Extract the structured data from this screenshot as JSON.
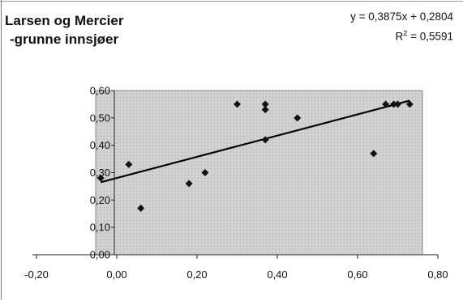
{
  "chart_data": {
    "type": "scatter",
    "title": "Larsen og Mercier",
    "subtitle": "-grunne innsjøer",
    "trendline": {
      "equation": "y = 0,3875x + 0,2804",
      "r_squared_label": "R",
      "r_squared_sup": "2",
      "r_squared_value": " = 0,5591",
      "slope": 0.3875,
      "intercept": 0.2804,
      "x_range": [
        -0.04,
        0.73
      ]
    },
    "xlim": [
      -0.2,
      0.8
    ],
    "ylim": [
      0.0,
      0.6
    ],
    "x_ticks": [
      -0.2,
      0.0,
      0.2,
      0.4,
      0.6,
      0.8
    ],
    "x_tick_labels": [
      "-0,20",
      "0,00",
      "0,20",
      "0,40",
      "0,60",
      "0,80"
    ],
    "y_ticks": [
      0.0,
      0.1,
      0.2,
      0.3,
      0.4,
      0.5,
      0.6
    ],
    "y_tick_labels": [
      "0,00",
      "0,10",
      "0,20",
      "0,30",
      "0,40",
      "0,50",
      "0,60"
    ],
    "points": [
      {
        "x": -0.04,
        "y": 0.28
      },
      {
        "x": 0.03,
        "y": 0.33
      },
      {
        "x": 0.06,
        "y": 0.17
      },
      {
        "x": 0.18,
        "y": 0.26
      },
      {
        "x": 0.22,
        "y": 0.3
      },
      {
        "x": 0.3,
        "y": 0.55
      },
      {
        "x": 0.37,
        "y": 0.55
      },
      {
        "x": 0.37,
        "y": 0.53
      },
      {
        "x": 0.37,
        "y": 0.42
      },
      {
        "x": 0.45,
        "y": 0.5
      },
      {
        "x": 0.64,
        "y": 0.37
      },
      {
        "x": 0.67,
        "y": 0.55
      },
      {
        "x": 0.69,
        "y": 0.55
      },
      {
        "x": 0.7,
        "y": 0.55
      },
      {
        "x": 0.73,
        "y": 0.55
      }
    ],
    "grid": false,
    "legend": "none",
    "colors": {
      "plot_background": "#cfcfcf",
      "marker": "#111111",
      "trendline": "#000000",
      "axis": "#222222"
    }
  }
}
